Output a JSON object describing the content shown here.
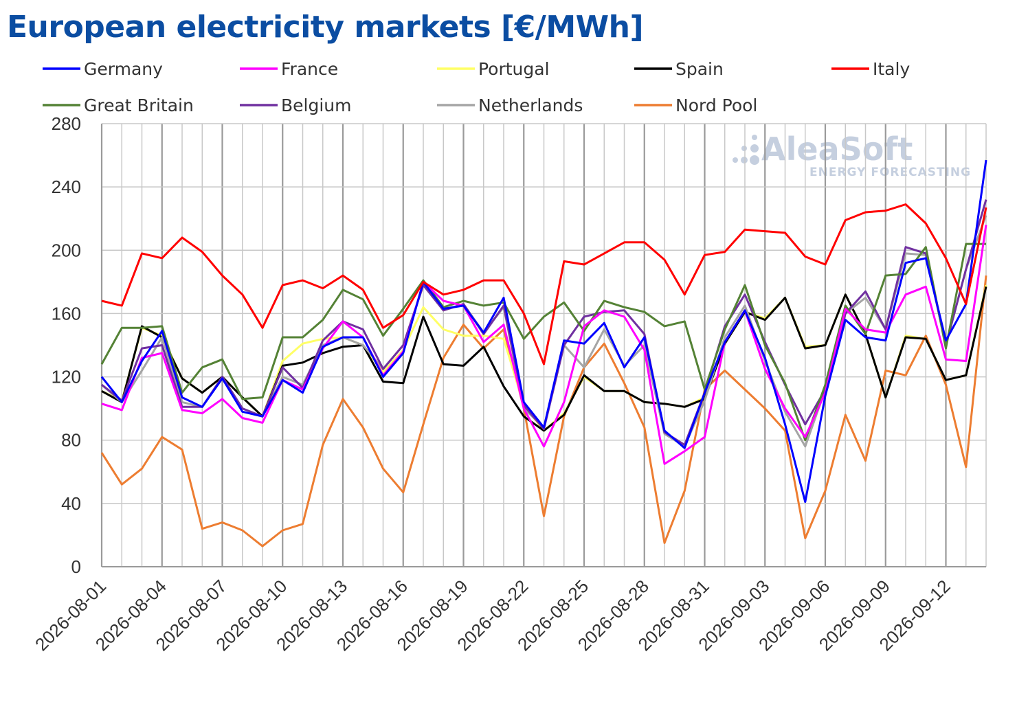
{
  "title": "European electricity markets [€/MWh]",
  "watermark": {
    "brand": "AleaSoft",
    "tagline": "ENERGY FORECASTING",
    "color": "#c5cfdf"
  },
  "chart_data": {
    "type": "line",
    "title": "European electricity markets [€/MWh]",
    "xlabel": "",
    "ylabel": "",
    "ylim": [
      0,
      280
    ],
    "y_ticks": [
      0,
      40,
      80,
      120,
      160,
      200,
      240,
      280
    ],
    "x_tick_labels": [
      "2026-08-01",
      "2026-08-04",
      "2026-08-07",
      "2026-08-10",
      "2026-08-13",
      "2026-08-16",
      "2026-08-19",
      "2026-08-22",
      "2026-08-25",
      "2026-08-28",
      "2026-08-31",
      "2026-09-03",
      "2026-09-06",
      "2026-09-09",
      "2026-09-12"
    ],
    "grid": true,
    "legend_position": "top",
    "x": [
      "2026-08-01",
      "2026-08-02",
      "2026-08-03",
      "2026-08-04",
      "2026-08-05",
      "2026-08-06",
      "2026-08-07",
      "2026-08-08",
      "2026-08-09",
      "2026-08-10",
      "2026-08-11",
      "2026-08-12",
      "2026-08-13",
      "2026-08-14",
      "2026-08-15",
      "2026-08-16",
      "2026-08-17",
      "2026-08-18",
      "2026-08-19",
      "2026-08-20",
      "2026-08-21",
      "2026-08-22",
      "2026-08-23",
      "2026-08-24",
      "2026-08-25",
      "2026-08-26",
      "2026-08-27",
      "2026-08-28",
      "2026-08-29",
      "2026-08-30",
      "2026-08-31",
      "2026-09-01",
      "2026-09-02",
      "2026-09-03",
      "2026-09-04",
      "2026-09-05",
      "2026-09-06",
      "2026-09-07",
      "2026-09-08",
      "2026-09-09",
      "2026-09-10",
      "2026-09-11",
      "2026-09-12",
      "2026-09-13",
      "2026-09-14"
    ],
    "series": [
      {
        "name": "Nord Pool",
        "color": "#ed7d31",
        "values": [
          72,
          52,
          62,
          82,
          74,
          24,
          28,
          23,
          13,
          23,
          27,
          77,
          106,
          88,
          62,
          47,
          90,
          132,
          153,
          138,
          150,
          100,
          32,
          95,
          126,
          141,
          116,
          88,
          15,
          48,
          112,
          124,
          112,
          100,
          86,
          18,
          48,
          96,
          67,
          124,
          121,
          146,
          115,
          63,
          184
        ]
      },
      {
        "name": "Portugal",
        "color": "#ffff66",
        "values": [
          111,
          105,
          151,
          146,
          119,
          110,
          120,
          107,
          95,
          130,
          141,
          144,
          145,
          140,
          123,
          137,
          164,
          150,
          146,
          146,
          144,
          102,
          86,
          97,
          120,
          111,
          111,
          104,
          103,
          101,
          107,
          141,
          161,
          157,
          170,
          139,
          140,
          172,
          147,
          107,
          146,
          144,
          118,
          121,
          178
        ]
      },
      {
        "name": "Spain",
        "color": "#000000",
        "values": [
          111,
          104,
          152,
          145,
          119,
          110,
          120,
          107,
          95,
          127,
          129,
          135,
          139,
          140,
          117,
          116,
          158,
          128,
          127,
          139,
          114,
          95,
          86,
          96,
          121,
          111,
          111,
          104,
          103,
          101,
          106,
          141,
          161,
          156,
          170,
          138,
          140,
          172,
          147,
          107,
          145,
          144,
          118,
          121,
          177
        ]
      },
      {
        "name": "Netherlands",
        "color": "#a5a5a5",
        "values": [
          115,
          104,
          124,
          145,
          104,
          101,
          120,
          100,
          95,
          120,
          115,
          140,
          145,
          140,
          125,
          140,
          178,
          162,
          166,
          148,
          164,
          100,
          88,
          140,
          126,
          150,
          127,
          140,
          84,
          76,
          105,
          145,
          165,
          130,
          98,
          76,
          112,
          160,
          170,
          150,
          198,
          197,
          140,
          188,
          222
        ]
      },
      {
        "name": "Belgium",
        "color": "#7030a0",
        "values": [
          115,
          105,
          138,
          140,
          101,
          101,
          120,
          100,
          95,
          126,
          113,
          143,
          155,
          150,
          125,
          140,
          178,
          162,
          166,
          147,
          165,
          102,
          87,
          140,
          158,
          161,
          162,
          147,
          85,
          77,
          110,
          152,
          172,
          142,
          115,
          90,
          112,
          160,
          174,
          150,
          202,
          198,
          140,
          188,
          232
        ]
      },
      {
        "name": "Great Britain",
        "color": "#548235",
        "values": [
          128,
          151,
          151,
          152,
          110,
          126,
          131,
          106,
          107,
          145,
          145,
          156,
          175,
          169,
          146,
          163,
          181,
          164,
          168,
          165,
          167,
          144,
          158,
          167,
          149,
          168,
          164,
          161,
          152,
          155,
          112,
          150,
          178,
          140,
          116,
          80,
          115,
          165,
          147,
          184,
          185,
          202,
          138,
          204,
          204
        ]
      },
      {
        "name": "France",
        "color": "#ff00ff",
        "values": [
          103,
          99,
          132,
          135,
          99,
          97,
          106,
          94,
          91,
          118,
          112,
          138,
          155,
          145,
          121,
          136,
          180,
          168,
          165,
          142,
          153,
          100,
          76,
          104,
          152,
          162,
          158,
          137,
          65,
          73,
          82,
          142,
          162,
          125,
          100,
          82,
          110,
          163,
          150,
          148,
          172,
          177,
          131,
          130,
          216
        ]
      },
      {
        "name": "Germany",
        "color": "#0000ff",
        "values": [
          120,
          104,
          130,
          149,
          107,
          101,
          119,
          98,
          95,
          118,
          110,
          139,
          145,
          145,
          120,
          135,
          180,
          163,
          165,
          148,
          170,
          104,
          88,
          143,
          141,
          154,
          126,
          145,
          86,
          75,
          110,
          142,
          162,
          132,
          90,
          41,
          108,
          156,
          145,
          143,
          192,
          195,
          143,
          166,
          257
        ]
      },
      {
        "name": "Italy",
        "color": "#ff0000",
        "values": [
          168,
          165,
          198,
          195,
          208,
          199,
          184,
          172,
          151,
          178,
          181,
          176,
          184,
          175,
          151,
          159,
          180,
          172,
          175,
          181,
          181,
          160,
          128,
          193,
          191,
          198,
          205,
          205,
          194,
          172,
          197,
          199,
          213,
          212,
          211,
          196,
          191,
          219,
          224,
          225,
          229,
          217,
          195,
          166,
          227
        ]
      }
    ],
    "legend_order": [
      "Germany",
      "France",
      "Portugal",
      "Spain",
      "Italy",
      "Great Britain",
      "Belgium",
      "Netherlands",
      "Nord Pool"
    ]
  }
}
